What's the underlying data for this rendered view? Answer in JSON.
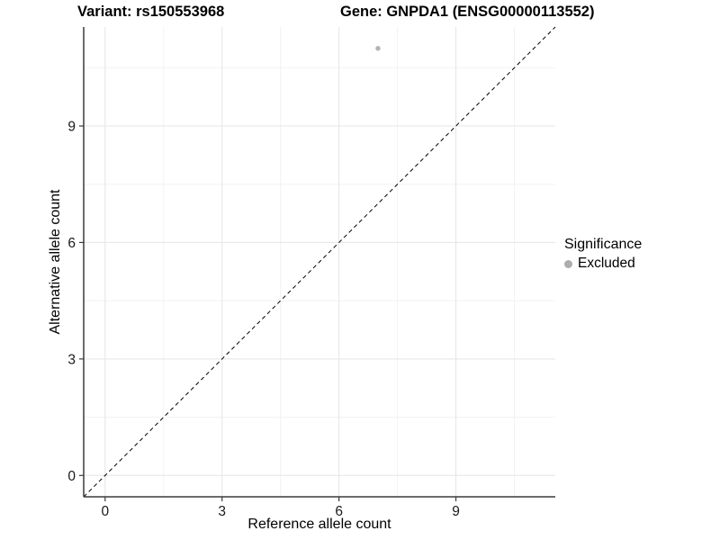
{
  "figure": {
    "background": "#ffffff"
  },
  "chart_data": {
    "type": "scatter",
    "title_left": "Variant: rs150553968",
    "title_right": "Gene: GNPDA1 (ENSG00000113552)",
    "xlabel": "Reference allele count",
    "ylabel": "Alternative allele count",
    "xlim": [
      -0.55,
      11.55
    ],
    "ylim": [
      -0.55,
      11.55
    ],
    "xticks": [
      0,
      3,
      6,
      9
    ],
    "yticks": [
      0,
      3,
      6,
      9
    ],
    "xticks_minor": [
      1.5,
      4.5,
      7.5,
      10.5
    ],
    "yticks_minor": [
      1.5,
      4.5,
      7.5,
      10.5
    ],
    "grid": "major+minor",
    "reference_line": {
      "equation": "y = x",
      "style": "dashed",
      "color": "#000000"
    },
    "series": [
      {
        "name": "Excluded",
        "color": "#b3b3b3",
        "points": [
          {
            "x": 7,
            "y": 11
          }
        ]
      }
    ],
    "legend": {
      "position": "right",
      "title": "Significance",
      "items": [
        {
          "label": "Excluded",
          "color": "#adadad"
        }
      ]
    },
    "colors": {
      "axis_line": "#3a3a3a",
      "grid_major": "#e5e5e5",
      "grid_minor": "#f2f2f2",
      "tick_text": "#1a1a1a"
    }
  }
}
